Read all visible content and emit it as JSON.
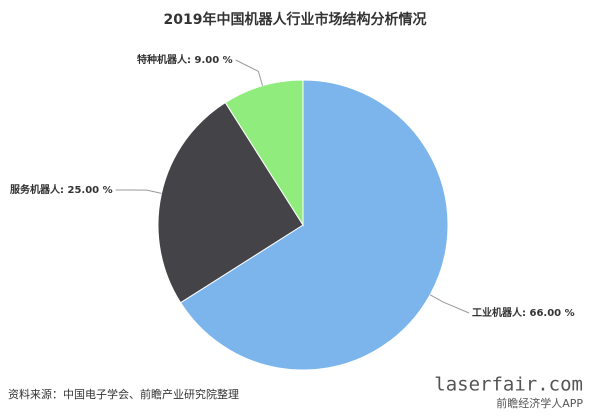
{
  "chart_data": {
    "type": "pie",
    "title": "2019年中国机器人行业市场结构分析情况",
    "categories": [
      "工业机器人",
      "服务机器人",
      "特种机器人"
    ],
    "values": [
      66,
      25,
      9
    ],
    "value_labels": [
      "66.00 %",
      "25.00 %",
      "9.00 %"
    ],
    "label_separator": ": ",
    "colors": [
      "#7cb5ec",
      "#434348",
      "#90ed7d"
    ],
    "source": "资料来源：中国电子学会、前瞻产业研究院整理",
    "watermarks": [
      "laserfair.com",
      "前瞻经济学人APP"
    ]
  }
}
